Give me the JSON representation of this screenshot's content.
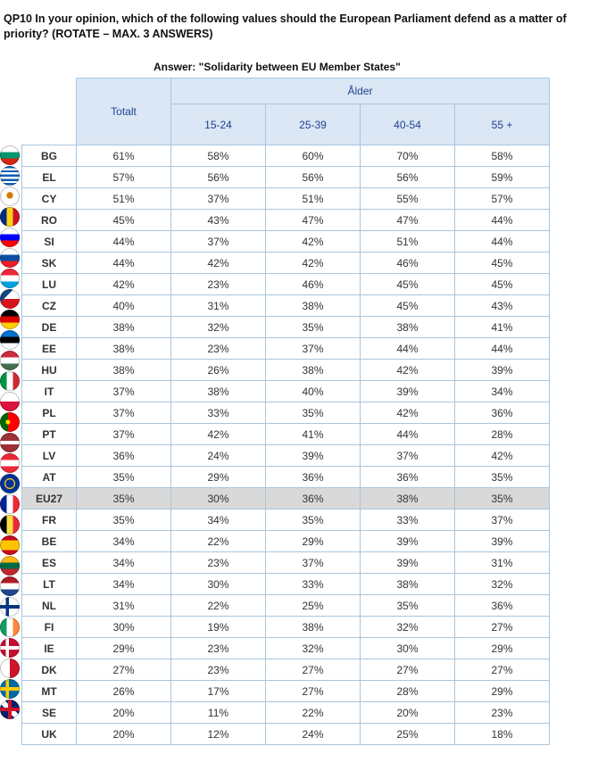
{
  "question": "QP10 In your opinion, which of the following values should the European Parliament defend as a matter of priority? (ROTATE – MAX. 3 ANSWERS)",
  "answer": "Answer: \"Solidarity between EU Member States\"",
  "headers": {
    "total": "Totalt",
    "age_group": "Ålder",
    "ages": [
      "15-24",
      "25-39",
      "40-54",
      "55 +"
    ]
  },
  "rows": [
    {
      "country": "BG",
      "values": [
        "61%",
        "58%",
        "60%",
        "70%",
        "58%"
      ],
      "flag": "bulgaria-flag-icon"
    },
    {
      "country": "EL",
      "values": [
        "57%",
        "56%",
        "56%",
        "56%",
        "59%"
      ],
      "flag": "greece-flag-icon"
    },
    {
      "country": "CY",
      "values": [
        "51%",
        "37%",
        "51%",
        "55%",
        "57%"
      ],
      "flag": "cyprus-flag-icon"
    },
    {
      "country": "RO",
      "values": [
        "45%",
        "43%",
        "47%",
        "47%",
        "44%"
      ],
      "flag": "romania-flag-icon"
    },
    {
      "country": "SI",
      "values": [
        "44%",
        "37%",
        "42%",
        "51%",
        "44%"
      ],
      "flag": "slovenia-flag-icon"
    },
    {
      "country": "SK",
      "values": [
        "44%",
        "42%",
        "42%",
        "46%",
        "45%"
      ],
      "flag": "slovakia-flag-icon"
    },
    {
      "country": "LU",
      "values": [
        "42%",
        "23%",
        "46%",
        "45%",
        "45%"
      ],
      "flag": "luxembourg-flag-icon"
    },
    {
      "country": "CZ",
      "values": [
        "40%",
        "31%",
        "38%",
        "45%",
        "43%"
      ],
      "flag": "czechia-flag-icon"
    },
    {
      "country": "DE",
      "values": [
        "38%",
        "32%",
        "35%",
        "38%",
        "41%"
      ],
      "flag": "germany-flag-icon"
    },
    {
      "country": "EE",
      "values": [
        "38%",
        "23%",
        "37%",
        "44%",
        "44%"
      ],
      "flag": "estonia-flag-icon"
    },
    {
      "country": "HU",
      "values": [
        "38%",
        "26%",
        "38%",
        "42%",
        "39%"
      ],
      "flag": "hungary-flag-icon"
    },
    {
      "country": "IT",
      "values": [
        "37%",
        "38%",
        "40%",
        "39%",
        "34%"
      ],
      "flag": "italy-flag-icon"
    },
    {
      "country": "PL",
      "values": [
        "37%",
        "33%",
        "35%",
        "42%",
        "36%"
      ],
      "flag": "poland-flag-icon"
    },
    {
      "country": "PT",
      "values": [
        "37%",
        "42%",
        "41%",
        "44%",
        "28%"
      ],
      "flag": "portugal-flag-icon"
    },
    {
      "country": "LV",
      "values": [
        "36%",
        "24%",
        "39%",
        "37%",
        "42%"
      ],
      "flag": "latvia-flag-icon"
    },
    {
      "country": "AT",
      "values": [
        "35%",
        "29%",
        "36%",
        "36%",
        "35%"
      ],
      "flag": "austria-flag-icon"
    },
    {
      "country": "EU27",
      "values": [
        "35%",
        "30%",
        "36%",
        "38%",
        "35%"
      ],
      "flag": "eu-flag-icon",
      "highlight": true
    },
    {
      "country": "FR",
      "values": [
        "35%",
        "34%",
        "35%",
        "33%",
        "37%"
      ],
      "flag": "france-flag-icon"
    },
    {
      "country": "BE",
      "values": [
        "34%",
        "22%",
        "29%",
        "39%",
        "39%"
      ],
      "flag": "belgium-flag-icon"
    },
    {
      "country": "ES",
      "values": [
        "34%",
        "23%",
        "37%",
        "39%",
        "31%"
      ],
      "flag": "spain-flag-icon"
    },
    {
      "country": "LT",
      "values": [
        "34%",
        "30%",
        "33%",
        "38%",
        "32%"
      ],
      "flag": "lithuania-flag-icon"
    },
    {
      "country": "NL",
      "values": [
        "31%",
        "22%",
        "25%",
        "35%",
        "36%"
      ],
      "flag": "netherlands-flag-icon"
    },
    {
      "country": "FI",
      "values": [
        "30%",
        "19%",
        "38%",
        "32%",
        "27%"
      ],
      "flag": "finland-flag-icon"
    },
    {
      "country": "IE",
      "values": [
        "29%",
        "23%",
        "32%",
        "30%",
        "29%"
      ],
      "flag": "ireland-flag-icon"
    },
    {
      "country": "DK",
      "values": [
        "27%",
        "23%",
        "27%",
        "27%",
        "27%"
      ],
      "flag": "denmark-flag-icon"
    },
    {
      "country": "MT",
      "values": [
        "26%",
        "17%",
        "27%",
        "28%",
        "29%"
      ],
      "flag": "malta-flag-icon"
    },
    {
      "country": "SE",
      "values": [
        "20%",
        "11%",
        "22%",
        "20%",
        "23%"
      ],
      "flag": "sweden-flag-icon"
    },
    {
      "country": "UK",
      "values": [
        "20%",
        "12%",
        "24%",
        "25%",
        "18%"
      ],
      "flag": "uk-flag-icon"
    }
  ],
  "colors": {
    "header_bg": "#dbe7f4",
    "header_text": "#1f3f94",
    "grid_line": "#a9c6de",
    "highlight_row": "#d9d9d9"
  }
}
